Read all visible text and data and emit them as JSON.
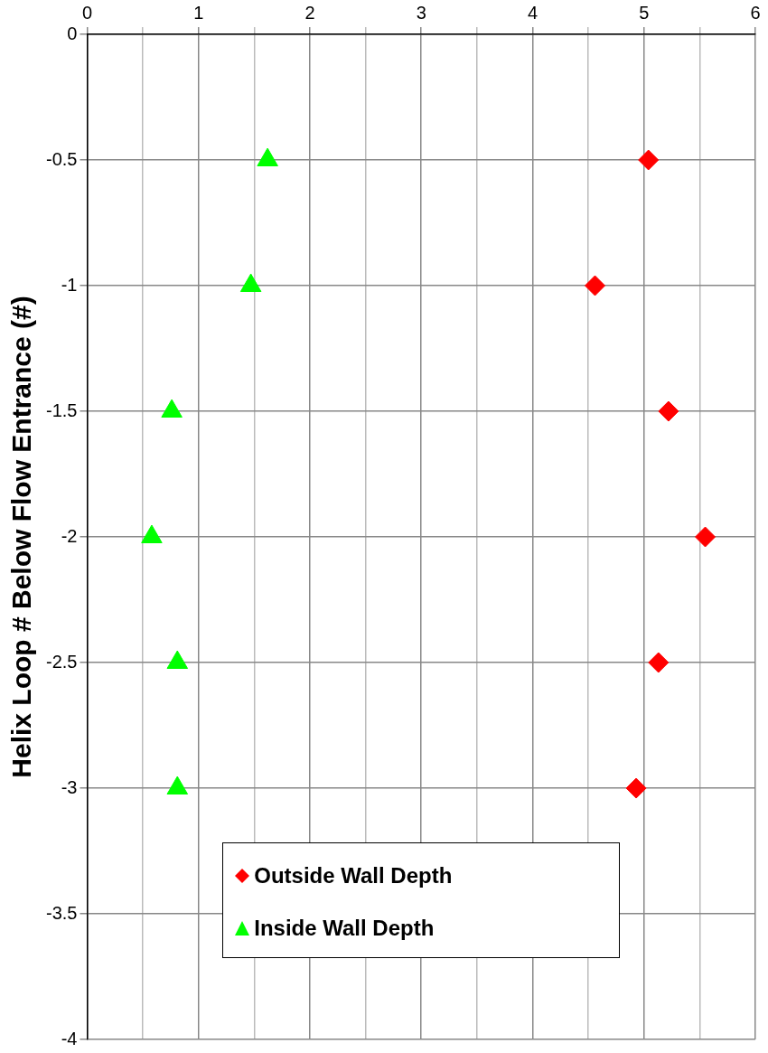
{
  "chart_data": {
    "type": "scatter",
    "ylabel": "Helix Loop # Below Flow Entrance (#)",
    "xlim": [
      0,
      6
    ],
    "xticks": [
      0,
      {
        "value": 0.5,
        "label": null
      },
      1,
      {
        "value": 1.5,
        "label": null
      },
      2,
      {
        "value": 2.5,
        "label": null
      },
      3,
      {
        "value": 3.5,
        "label": null
      },
      4,
      {
        "value": 4.5,
        "label": null
      },
      5,
      {
        "value": 5.5,
        "label": null
      },
      6
    ],
    "ylim": [
      -4,
      0
    ],
    "yticks": [
      -4,
      -3.5,
      -3,
      -2.5,
      -2,
      -1.5,
      -1,
      -0.5,
      0
    ],
    "grid": true,
    "legend": "bottom",
    "series": [
      {
        "name": "Outside Wall Depth",
        "color": "#ff0000",
        "marker": "diamond",
        "x": [
          5.04,
          4.56,
          5.22,
          5.55,
          5.13,
          4.93
        ],
        "values": [
          -0.5,
          -1,
          -1.5,
          -2,
          -2.5,
          -3
        ]
      },
      {
        "name": "Inside Wall Depth",
        "color": "#00ff00",
        "marker": "triangle",
        "x": [
          1.62,
          1.47,
          0.76,
          0.58,
          0.81,
          0.81
        ],
        "values": [
          -0.5,
          -1,
          -1.5,
          -2,
          -2.5,
          -3
        ]
      }
    ]
  }
}
